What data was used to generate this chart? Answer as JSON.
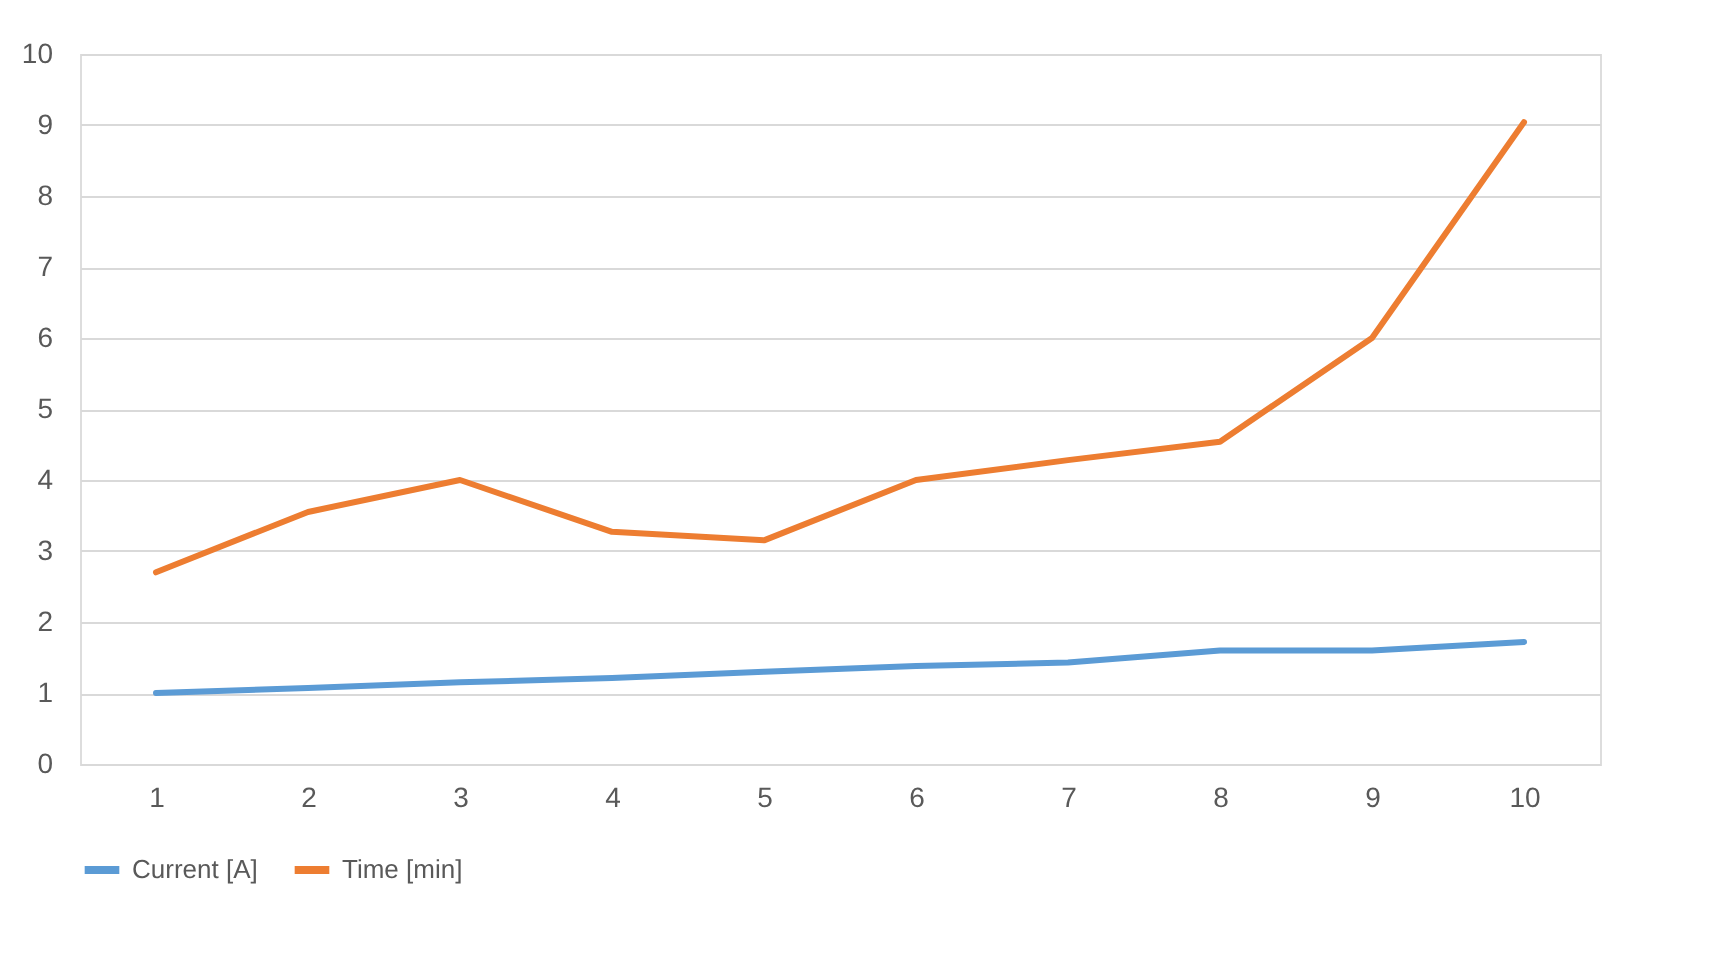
{
  "chart_data": {
    "type": "line",
    "categories": [
      "1",
      "2",
      "3",
      "4",
      "5",
      "6",
      "7",
      "8",
      "9",
      "10"
    ],
    "series": [
      {
        "name": "Current [A]",
        "color": "#5b9bd5",
        "values": [
          1.0,
          1.07,
          1.15,
          1.21,
          1.3,
          1.38,
          1.43,
          1.6,
          1.6,
          1.72
        ]
      },
      {
        "name": "Time [min]",
        "color": "#ed7d31",
        "values": [
          2.7,
          3.55,
          4.0,
          3.27,
          3.15,
          4.0,
          4.28,
          4.54,
          6.0,
          9.04
        ]
      }
    ],
    "ylim": [
      0,
      10
    ],
    "yticks": [
      0,
      1,
      2,
      3,
      4,
      5,
      6,
      7,
      8,
      9,
      10
    ],
    "grid": "y",
    "legend": "bottom",
    "marker": "none",
    "line_style": "solid"
  }
}
